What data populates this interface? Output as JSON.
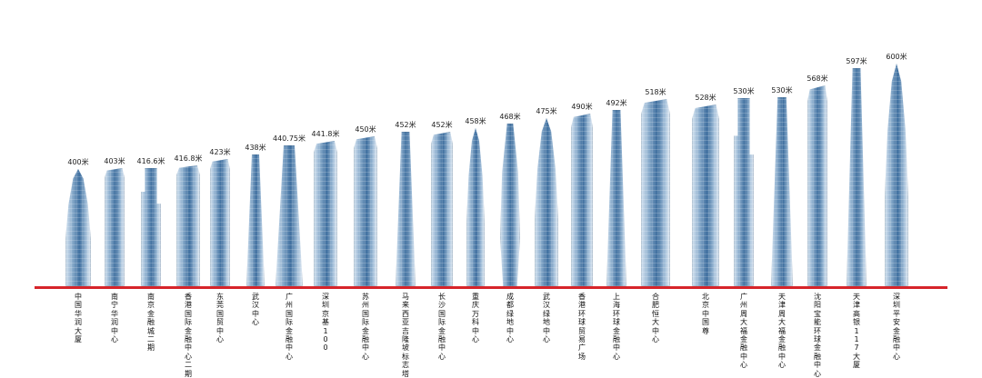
{
  "baseline_color": "#d6242a",
  "buildings": [
    {
      "height_label": "400米",
      "name": "中国华润大厦",
      "shape": "bullet"
    },
    {
      "height_label": "403米",
      "name": "南宁华润中心",
      "shape": "slab"
    },
    {
      "height_label": "416.6米",
      "name": "南京金融城二期",
      "shape": "stepped"
    },
    {
      "height_label": "416.8米",
      "name": "香港国际金融中心二期",
      "shape": "slab"
    },
    {
      "height_label": "423米",
      "name": "东莞国贸中心",
      "shape": "slab"
    },
    {
      "height_label": "438米",
      "name": "武汉中心",
      "shape": "tapered"
    },
    {
      "height_label": "440.75米",
      "name": "广州国际金融中心",
      "shape": "tapered"
    },
    {
      "height_label": "441.8米",
      "name": "深圳京基100",
      "shape": "slab"
    },
    {
      "height_label": "450米",
      "name": "苏州国际金融中心",
      "shape": "slab"
    },
    {
      "height_label": "452米",
      "name": "马来西亚吉隆坡标志塔",
      "shape": "tapered"
    },
    {
      "height_label": "452米",
      "name": "长沙国际金融中心",
      "shape": "slab"
    },
    {
      "height_label": "458米",
      "name": "重庆万科中心",
      "shape": "bullet"
    },
    {
      "height_label": "468米",
      "name": "成都绿地中心",
      "shape": "twisted"
    },
    {
      "height_label": "475米",
      "name": "武汉绿地中心",
      "shape": "bullet"
    },
    {
      "height_label": "490米",
      "name": "香港环球贸易广场",
      "shape": "slab"
    },
    {
      "height_label": "492米",
      "name": "上海环球金融中心",
      "shape": "tapered"
    },
    {
      "height_label": "518米",
      "name": "合肥恒大中心",
      "shape": "slab"
    },
    {
      "height_label": "528米",
      "name": "北京中国尊",
      "shape": "slab"
    },
    {
      "height_label": "530米",
      "name": "广州周大福金融中心",
      "shape": "stepped"
    },
    {
      "height_label": "530米",
      "name": "天津周大福金融中心",
      "shape": "tapered"
    },
    {
      "height_label": "568米",
      "name": "沈阳宝能环球金融中心",
      "shape": "slab"
    },
    {
      "height_label": "597米",
      "name": "天津高银117大厦",
      "shape": "tapered"
    },
    {
      "height_label": "600米",
      "name": "深圳平安金融中心",
      "shape": "bullet"
    }
  ]
}
